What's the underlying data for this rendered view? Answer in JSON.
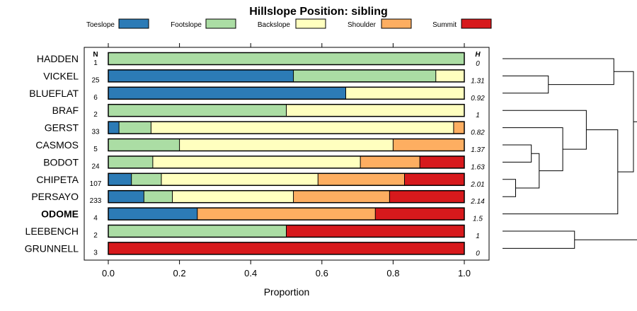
{
  "chart_data": {
    "type": "bar",
    "title": "Hillslope Position: sibling",
    "xlabel": "Proportion",
    "ylabel": "",
    "xlim": [
      0,
      1
    ],
    "xticks": [
      "0.0",
      "0.2",
      "0.4",
      "0.6",
      "0.8",
      "1.0"
    ],
    "n_header": "N",
    "h_header": "H",
    "legend_position": "top",
    "series": [
      {
        "name": "Toeslope",
        "color": "#2c7bb6"
      },
      {
        "name": "Footslope",
        "color": "#abdda4"
      },
      {
        "name": "Backslope",
        "color": "#ffffbf"
      },
      {
        "name": "Shoulder",
        "color": "#fdae61"
      },
      {
        "name": "Summit",
        "color": "#d7191c"
      }
    ],
    "rows": [
      {
        "label": "HADDEN",
        "n": "1",
        "h": "0",
        "bold": false,
        "values": [
          0,
          1.0,
          0,
          0,
          0
        ]
      },
      {
        "label": "VICKEL",
        "n": "25",
        "h": "1.31",
        "bold": false,
        "values": [
          0.52,
          0.4,
          0.08,
          0,
          0
        ]
      },
      {
        "label": "BLUEFLAT",
        "n": "6",
        "h": "0.92",
        "bold": false,
        "values": [
          0.667,
          0,
          0.333,
          0,
          0
        ]
      },
      {
        "label": "BRAF",
        "n": "2",
        "h": "1",
        "bold": false,
        "values": [
          0,
          0.5,
          0.5,
          0,
          0
        ]
      },
      {
        "label": "GERST",
        "n": "33",
        "h": "0.82",
        "bold": false,
        "values": [
          0.03,
          0.09,
          0.85,
          0.03,
          0
        ]
      },
      {
        "label": "CASMOS",
        "n": "5",
        "h": "1.37",
        "bold": false,
        "values": [
          0,
          0.2,
          0.6,
          0.2,
          0
        ]
      },
      {
        "label": "BODOT",
        "n": "24",
        "h": "1.63",
        "bold": false,
        "values": [
          0,
          0.125,
          0.583,
          0.167,
          0.125
        ]
      },
      {
        "label": "CHIPETA",
        "n": "107",
        "h": "2.01",
        "bold": false,
        "values": [
          0.065,
          0.084,
          0.44,
          0.243,
          0.168
        ]
      },
      {
        "label": "PERSAYO",
        "n": "233",
        "h": "2.14",
        "bold": false,
        "values": [
          0.1,
          0.08,
          0.34,
          0.27,
          0.21
        ]
      },
      {
        "label": "ODOME",
        "n": "4",
        "h": "1.5",
        "bold": true,
        "values": [
          0.25,
          0,
          0,
          0.5,
          0.25
        ]
      },
      {
        "label": "LEEBENCH",
        "n": "2",
        "h": "1",
        "bold": false,
        "values": [
          0,
          0.5,
          0,
          0,
          0.5
        ]
      },
      {
        "label": "GRUNNELL",
        "n": "3",
        "h": "0",
        "bold": false,
        "values": [
          0,
          0,
          0,
          0,
          1.0
        ]
      }
    ],
    "dendrogram": {
      "type": "hierarchical-clustering",
      "merges": [
        {
          "id": "a",
          "left": "VICKEL",
          "right": "BLUEFLAT",
          "height": 0.35
        },
        {
          "id": "b",
          "left": "HADDEN",
          "right": "a",
          "height": 0.85
        },
        {
          "id": "c",
          "left": "CASMOS",
          "right": "BODOT",
          "height": 0.22
        },
        {
          "id": "d",
          "left": "CHIPETA",
          "right": "PERSAYO",
          "height": 0.1
        },
        {
          "id": "e",
          "left": "c",
          "right": "d",
          "height": 0.28
        },
        {
          "id": "f",
          "left": "GERST",
          "right": "e",
          "height": 0.46
        },
        {
          "id": "g",
          "left": "BRAF",
          "right": "f",
          "height": 0.64
        },
        {
          "id": "h",
          "left": "g",
          "right": "ODOME",
          "height": 0.88
        },
        {
          "id": "i",
          "left": "b",
          "right": "h",
          "height": 1.0
        },
        {
          "id": "j",
          "left": "LEEBENCH",
          "right": "GRUNNELL",
          "height": 0.55
        },
        {
          "id": "k",
          "left": "i",
          "right": "j",
          "height": 1.15
        }
      ]
    }
  }
}
